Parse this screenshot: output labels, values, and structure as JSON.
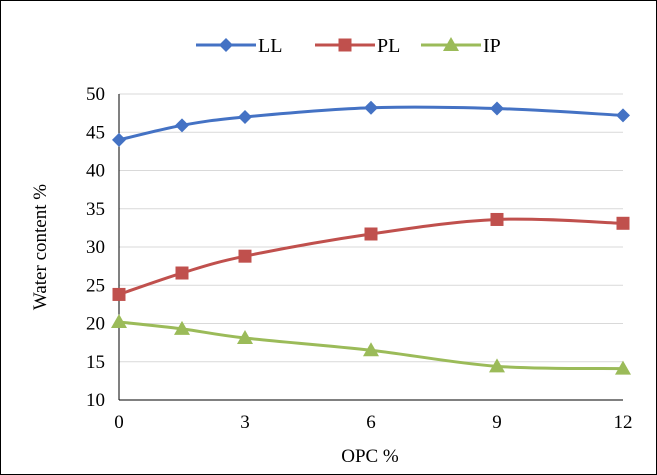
{
  "chart_data": {
    "type": "line",
    "title": "",
    "xlabel": "OPC %",
    "ylabel": "Water content %",
    "x": [
      0,
      1.5,
      3,
      6,
      9,
      12
    ],
    "xticks": [
      0,
      3,
      6,
      9,
      12
    ],
    "xlim": [
      0,
      12
    ],
    "ylim": [
      10,
      50
    ],
    "yticks": [
      10,
      15,
      20,
      25,
      30,
      35,
      40,
      45,
      50
    ],
    "grid": "horizontal",
    "legend_position": "top",
    "smooth": true,
    "series": [
      {
        "name": "LL",
        "color": "#4472C4",
        "marker": "diamond",
        "values": [
          44.0,
          45.9,
          47.0,
          48.2,
          48.1,
          47.2
        ]
      },
      {
        "name": "PL",
        "color": "#C0504D",
        "marker": "square",
        "values": [
          23.8,
          26.6,
          28.8,
          31.7,
          33.6,
          33.1
        ]
      },
      {
        "name": "IP",
        "color": "#9BBB59",
        "marker": "triangle",
        "values": [
          20.2,
          19.3,
          18.1,
          16.5,
          14.4,
          14.1
        ]
      }
    ]
  }
}
